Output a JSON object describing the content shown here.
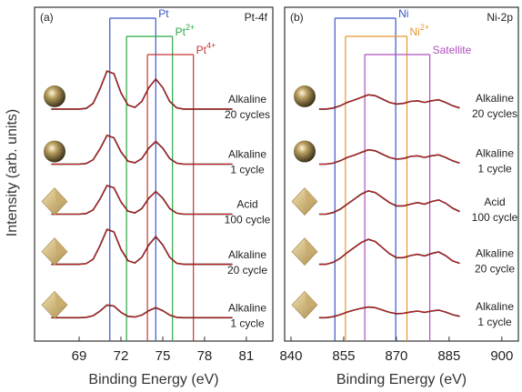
{
  "chart_data": [
    {
      "type": "line",
      "panel_label": "(a)",
      "title": "Pt-4f",
      "x_label": "Binding Energy (eV)",
      "y_label": "Intensity (arb. units)",
      "xlim": [
        65.8,
        82.9
      ],
      "xticks": [
        69,
        72,
        75,
        78,
        81
      ],
      "ylim": [
        0,
        100
      ],
      "x": [
        67,
        67.5,
        68,
        68.5,
        69,
        69.5,
        70,
        70.5,
        71,
        71.5,
        72,
        72.5,
        73,
        73.5,
        74,
        74.5,
        75,
        75.5,
        76,
        76.5,
        77,
        77.5,
        78,
        78.5,
        79,
        79.5,
        80
      ],
      "line_color": "#111111",
      "fit_color": "#d42020",
      "markers": [
        {
          "name": "Pt",
          "sup": "",
          "color": "#3a56c8",
          "positions": [
            71.2,
            74.5
          ]
        },
        {
          "name": "Pt",
          "sup": "2+",
          "color": "#2aa844",
          "positions": [
            72.4,
            75.7
          ]
        },
        {
          "name": "Pt",
          "sup": "4+",
          "color": "#c83434",
          "positions": [
            73.9,
            77.2
          ]
        }
      ],
      "series": [
        {
          "label": [
            "Alkaline",
            "20 cycles"
          ],
          "icon": "sphere",
          "values": [
            69.5,
            69.5,
            69.5,
            69.5,
            69.5,
            69.7,
            71.2,
            75.6,
            80.9,
            80.1,
            74.4,
            70.7,
            70,
            71.8,
            75.9,
            78.5,
            75.9,
            71.8,
            69.9,
            69.5,
            69.5,
            69.5,
            69.5,
            69.5,
            69.5,
            69.5,
            69.5
          ]
        },
        {
          "label": [
            "Alkaline",
            "1 cycle"
          ],
          "icon": "sphere",
          "values": [
            53,
            53,
            53,
            53,
            53,
            53.2,
            54.3,
            57.6,
            61.6,
            60.9,
            56.7,
            53.9,
            53.4,
            54.7,
            57.8,
            59.8,
            57.8,
            54.7,
            53.3,
            53,
            53,
            53,
            53,
            53,
            53,
            53,
            53
          ]
        },
        {
          "label": [
            "Acid",
            "100 cycle"
          ],
          "icon": "octahedron",
          "values": [
            38,
            38,
            38,
            38,
            38,
            38.2,
            39.3,
            42.6,
            46.6,
            45.9,
            41.7,
            38.9,
            38.4,
            39.7,
            42.8,
            44.8,
            42.8,
            39.7,
            38.3,
            38,
            38,
            38,
            38,
            38,
            38,
            38,
            38
          ]
        },
        {
          "label": [
            "Alkaline",
            "20 cycle"
          ],
          "icon": "octahedron",
          "values": [
            23,
            23,
            23,
            23,
            23,
            23.2,
            24.5,
            28.6,
            33.5,
            32.7,
            27.5,
            24.1,
            23.4,
            25.1,
            28.8,
            31.3,
            28.8,
            25.1,
            23.3,
            23,
            23,
            23,
            23,
            23,
            23,
            23,
            23
          ]
        },
        {
          "label": [
            "Alkaline",
            "1 cycle"
          ],
          "icon": "octahedron",
          "values": [
            7,
            7,
            7,
            7,
            7,
            7.1,
            7.6,
            9,
            10.8,
            10.5,
            8.6,
            7.4,
            7.2,
            7.8,
            9.1,
            10,
            9.1,
            7.8,
            7.1,
            7,
            7,
            7,
            7,
            7,
            7,
            7,
            7
          ]
        }
      ]
    },
    {
      "type": "line",
      "panel_label": "(b)",
      "title": "Ni-2p",
      "x_label": "Binding Energy (eV)",
      "xlim": [
        838.2,
        904.7
      ],
      "xticks": [
        840,
        855,
        870,
        885,
        900
      ],
      "ylim": [
        0,
        100
      ],
      "x": [
        848,
        850,
        852,
        854,
        856,
        858,
        860,
        862,
        864,
        866,
        868,
        870,
        872,
        874,
        876,
        878,
        880,
        882,
        884,
        886,
        888
      ],
      "line_color": "#111111",
      "fit_color": "#d42020",
      "markers": [
        {
          "name": "Ni",
          "sup": "",
          "color": "#3a56c8",
          "positions": [
            852.5,
            869.8
          ]
        },
        {
          "name": "Ni",
          "sup": "2+",
          "color": "#e8962a",
          "positions": [
            855.5,
            873
          ]
        },
        {
          "name": "Satellite",
          "sup": "",
          "color": "#b04fc0",
          "positions": [
            861,
            879.5
          ]
        }
      ],
      "series": [
        {
          "label": [
            "Alkaline",
            "20 cycles"
          ],
          "icon": "sphere",
          "values": [
            69.5,
            69.5,
            69.8,
            70.5,
            71.5,
            72.2,
            73,
            73.8,
            73.5,
            72.5,
            71.5,
            71,
            71.2,
            71.8,
            72,
            71.5,
            72,
            72.3,
            71.5,
            70.5,
            69.8
          ]
        },
        {
          "label": [
            "Alkaline",
            "1 cycle"
          ],
          "icon": "sphere",
          "values": [
            53,
            53,
            53.3,
            54,
            55,
            55.7,
            56.5,
            57.3,
            57,
            56,
            55,
            54.5,
            54.7,
            55.3,
            55.5,
            55,
            55.5,
            55.8,
            55,
            54,
            53.3
          ]
        },
        {
          "label": [
            "Acid",
            "100 cycle"
          ],
          "icon": "octahedron",
          "values": [
            38,
            38,
            38.5,
            39.5,
            41,
            42.5,
            44,
            45,
            44.5,
            43,
            41.5,
            40.5,
            40.5,
            41,
            41.5,
            41,
            41.8,
            42.3,
            41.3,
            39.8,
            38.8
          ]
        },
        {
          "label": [
            "Alkaline",
            "20 cycle"
          ],
          "icon": "octahedron",
          "values": [
            23,
            23,
            23.6,
            24.8,
            26.5,
            28,
            29.5,
            30.5,
            29.8,
            28,
            26.2,
            25,
            25,
            25.6,
            26,
            25.5,
            26.2,
            26.7,
            25.6,
            24,
            23.3
          ]
        },
        {
          "label": [
            "Alkaline",
            "1 cycle"
          ],
          "icon": "octahedron",
          "values": [
            7,
            7,
            7.3,
            7.9,
            8.7,
            9.3,
            9.8,
            10.2,
            10,
            9.3,
            8.6,
            8.2,
            8.3,
            8.7,
            9,
            8.6,
            9,
            9.3,
            8.7,
            7.9,
            7.4
          ]
        }
      ]
    }
  ]
}
